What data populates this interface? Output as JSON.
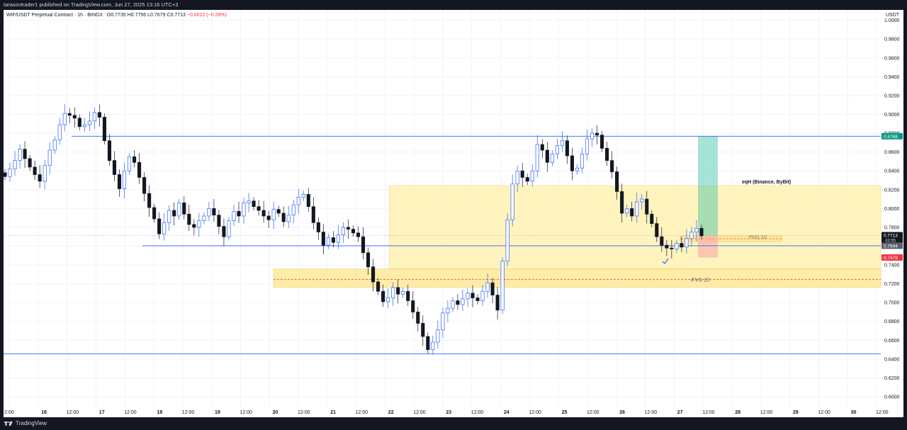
{
  "header": {
    "publish_line": "tarasovtrader1 published on TradingView.com, Jun 27, 2025 13:16 UTC+3"
  },
  "legend": {
    "symbol": "WIF/USDT Perpetual Contract · 1h · BINGX",
    "open_label": "O",
    "open": "0.7735",
    "high_label": "H",
    "high": "0.7756",
    "low_label": "L",
    "low": "0.7679",
    "close_label": "C",
    "close": "0.7713",
    "change": "−0.0022 (−0.28%)"
  },
  "currency": "USDT",
  "footer": {
    "brand": "TradingView"
  },
  "chart_data": {
    "type": "candlestick",
    "y_axis": {
      "ticks": [
        "1.0000",
        "0.9800",
        "0.9600",
        "0.9400",
        "0.9200",
        "0.9000",
        "0.8800",
        "0.8600",
        "0.8400",
        "0.8200",
        "0.8000",
        "0.7800",
        "0.7600",
        "0.7400",
        "0.7200",
        "0.7000",
        "0.6800",
        "0.6600",
        "0.6400",
        "0.6200",
        "0.6000"
      ],
      "range": [
        0.594,
        1.008
      ]
    },
    "x_axis": {
      "ticks": [
        "12:00",
        "16",
        "12:00",
        "17",
        "12:00",
        "18",
        "12:00",
        "19",
        "12:00",
        "20",
        "12:00",
        "21",
        "12:00",
        "22",
        "12:00",
        "23",
        "12:00",
        "24",
        "12:00",
        "25",
        "12:00",
        "26",
        "12:00",
        "27",
        "12:00",
        "28",
        "12:00",
        "29",
        "12:00",
        "30",
        "12:00"
      ],
      "visible_first_label": "2:00"
    },
    "price_badges": [
      {
        "value": "0.8768",
        "color": "#089981"
      },
      {
        "value": "0.7713",
        "countdown": "43:55",
        "color": "#131722"
      },
      {
        "value": "0.7694",
        "color": "#5d606b"
      },
      {
        "value": "0.7479",
        "color": "#f23645"
      }
    ],
    "horizontal_lines": [
      {
        "price": 0.8768,
        "color": "#2962ff"
      },
      {
        "price": 0.7604,
        "color": "#2962ff"
      },
      {
        "price": 0.6455,
        "color": "#2962ff"
      }
    ],
    "zones": [
      {
        "label": "eqH (Binance, ByBit)",
        "top": 0.8244,
        "bottom": 0.7357,
        "color": "#fff2b3"
      },
      {
        "label": "iFVG 1D",
        "top": 0.7357,
        "bottom": 0.7163,
        "mid": 0.7247,
        "color": "#ffe998"
      },
      {
        "label": "FVG 1D",
        "top": 0.7709,
        "bottom": 0.7648,
        "color": "#ffe998"
      }
    ],
    "position": {
      "entry": 0.7713,
      "target": 0.8768,
      "stop": 0.7479
    },
    "series": [
      {
        "name": "WIF/USDT",
        "closes": [
          0.834,
          0.842,
          0.851,
          0.863,
          0.853,
          0.844,
          0.836,
          0.829,
          0.846,
          0.862,
          0.873,
          0.889,
          0.901,
          0.899,
          0.896,
          0.887,
          0.889,
          0.893,
          0.902,
          0.897,
          0.872,
          0.851,
          0.836,
          0.821,
          0.84,
          0.855,
          0.849,
          0.833,
          0.816,
          0.801,
          0.789,
          0.773,
          0.785,
          0.798,
          0.792,
          0.806,
          0.794,
          0.783,
          0.78,
          0.787,
          0.792,
          0.8,
          0.793,
          0.781,
          0.77,
          0.787,
          0.797,
          0.792,
          0.806,
          0.808,
          0.802,
          0.798,
          0.792,
          0.788,
          0.799,
          0.795,
          0.786,
          0.793,
          0.804,
          0.812,
          0.815,
          0.802,
          0.785,
          0.775,
          0.761,
          0.769,
          0.764,
          0.772,
          0.78,
          0.778,
          0.774,
          0.77,
          0.753,
          0.738,
          0.722,
          0.712,
          0.701,
          0.705,
          0.716,
          0.709,
          0.712,
          0.702,
          0.69,
          0.678,
          0.664,
          0.65,
          0.658,
          0.671,
          0.689,
          0.694,
          0.702,
          0.698,
          0.704,
          0.71,
          0.705,
          0.702,
          0.712,
          0.721,
          0.708,
          0.692,
          0.744,
          0.788,
          0.826,
          0.84,
          0.833,
          0.829,
          0.84,
          0.868,
          0.862,
          0.849,
          0.858,
          0.867,
          0.872,
          0.856,
          0.84,
          0.843,
          0.858,
          0.874,
          0.88,
          0.878,
          0.864,
          0.851,
          0.839,
          0.818,
          0.795,
          0.8,
          0.792,
          0.807,
          0.81,
          0.794,
          0.784,
          0.77,
          0.761,
          0.758,
          0.757,
          0.763,
          0.759,
          0.768,
          0.775,
          0.779,
          0.771
        ]
      }
    ]
  }
}
